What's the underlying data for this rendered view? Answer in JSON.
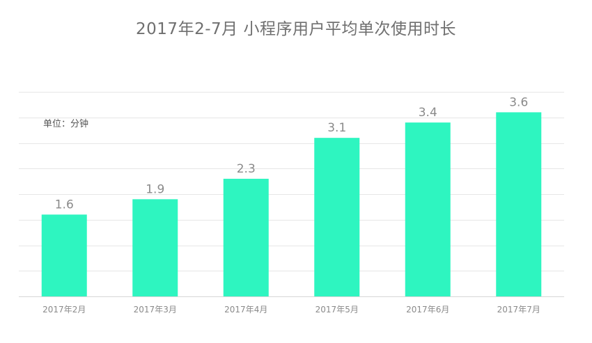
{
  "chart_data": {
    "type": "bar",
    "title": "2017年2-7月 小程序用户平均单次使用时长",
    "unit_label": "单位：分钟",
    "categories": [
      "2017年2月",
      "2017年3月",
      "2017年4月",
      "2017年5月",
      "2017年6月",
      "2017年7月"
    ],
    "values": [
      1.6,
      1.9,
      2.3,
      3.1,
      3.4,
      3.6
    ],
    "data_labels": [
      "1.6",
      "1.9",
      "2.3",
      "3.1",
      "3.4",
      "3.6"
    ],
    "ylim": [
      0,
      4
    ],
    "grid": true,
    "bar_color": "#2ef5c0",
    "grid_color": "#e6e6e6",
    "text_color": "#8a8a8a"
  }
}
